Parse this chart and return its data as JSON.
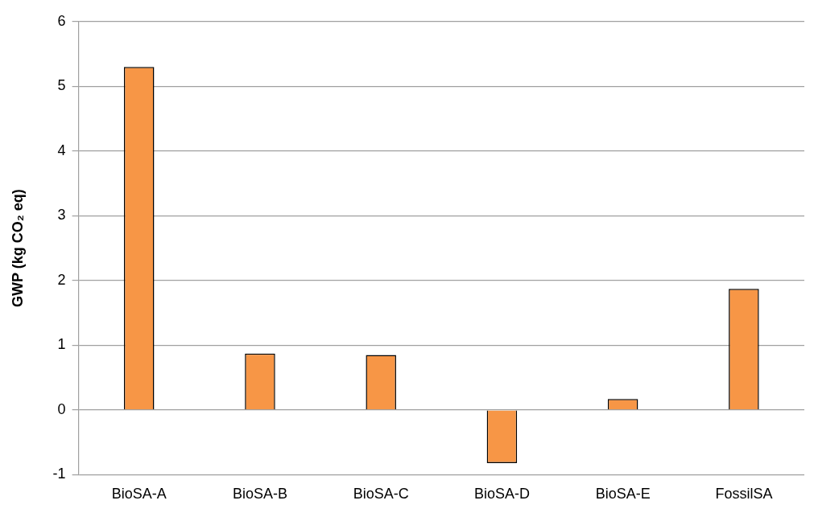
{
  "chart_data": {
    "type": "bar",
    "ylabel": "GWP (kg CO₂ eq)",
    "categories": [
      "BioSA-A",
      "BioSA-B",
      "BioSA-C",
      "BioSA-D",
      "BioSA-E",
      "FossilSA"
    ],
    "values": [
      5.3,
      0.87,
      0.85,
      -0.82,
      0.17,
      1.87
    ],
    "color": "#f79646",
    "ylim": [
      -1,
      6
    ],
    "yticks": [
      -1,
      0,
      1,
      2,
      3,
      4,
      5,
      6
    ],
    "grid": "y",
    "legend": false
  }
}
